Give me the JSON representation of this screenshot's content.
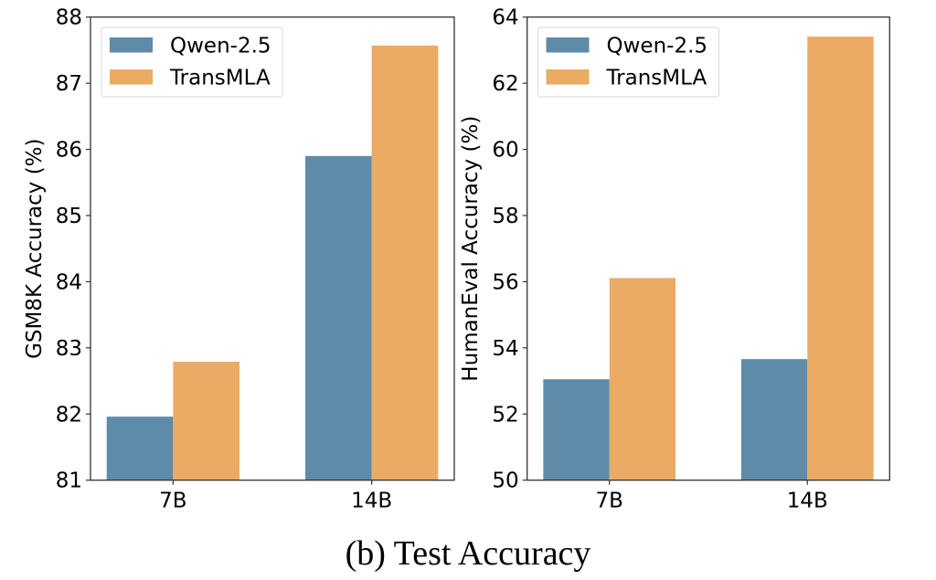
{
  "caption": "(b) Test Accuracy",
  "colors": {
    "qwen": "#5f8bab",
    "transmla": "#ebab65"
  },
  "chart_data": [
    {
      "type": "bar",
      "title": "",
      "xlabel": "",
      "ylabel": "GSM8K Accuracy (%)",
      "categories": [
        "7B",
        "14B"
      ],
      "ylim": [
        81,
        88
      ],
      "yticks": [
        81,
        82,
        83,
        84,
        85,
        86,
        87,
        88
      ],
      "legend": {
        "position": "top-left",
        "entries": [
          "Qwen-2.5",
          "TransMLA"
        ]
      },
      "grid": false,
      "series": [
        {
          "name": "Qwen-2.5",
          "color": "#5f8bab",
          "values": [
            81.96,
            85.9
          ]
        },
        {
          "name": "TransMLA",
          "color": "#ebab65",
          "values": [
            82.79,
            87.57
          ]
        }
      ]
    },
    {
      "type": "bar",
      "title": "",
      "xlabel": "",
      "ylabel": "HumanEval Accuracy (%)",
      "categories": [
        "7B",
        "14B"
      ],
      "ylim": [
        50,
        64
      ],
      "yticks": [
        50,
        52,
        54,
        56,
        58,
        60,
        62,
        64
      ],
      "legend": {
        "position": "top-left",
        "entries": [
          "Qwen-2.5",
          "TransMLA"
        ]
      },
      "grid": false,
      "series": [
        {
          "name": "Qwen-2.5",
          "color": "#5f8bab",
          "values": [
            53.05,
            53.66
          ]
        },
        {
          "name": "TransMLA",
          "color": "#ebab65",
          "values": [
            56.11,
            63.41
          ]
        }
      ]
    }
  ]
}
